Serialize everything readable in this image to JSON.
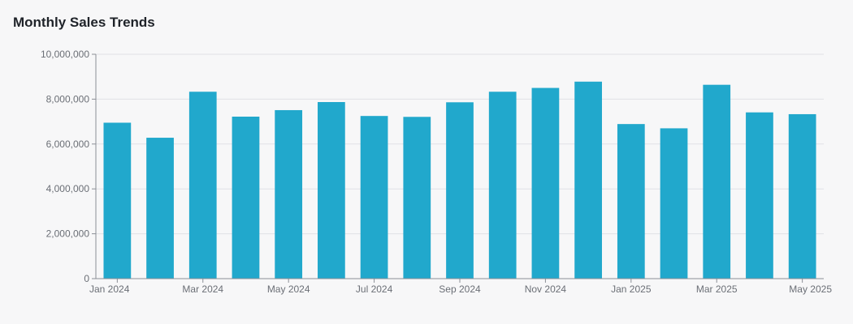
{
  "chart_data": {
    "type": "bar",
    "title": "Monthly Sales Trends",
    "xlabel": "",
    "ylabel": "",
    "ylim": [
      0,
      10000000
    ],
    "yticks": [
      0,
      2000000,
      4000000,
      6000000,
      8000000,
      10000000
    ],
    "ytick_labels": [
      "0",
      "2,000,000",
      "4,000,000",
      "6,000,000",
      "8,000,000",
      "10,000,000"
    ],
    "categories": [
      "Jan 2024",
      "Feb 2024",
      "Mar 2024",
      "Apr 2024",
      "May 2024",
      "Jun 2024",
      "Jul 2024",
      "Aug 2024",
      "Sep 2024",
      "Oct 2024",
      "Nov 2024",
      "Dec 2024",
      "Jan 2025",
      "Feb 2025",
      "Mar 2025",
      "Apr 2025",
      "May 2025"
    ],
    "shown_category_labels": [
      "Jan 2024",
      "Mar 2024",
      "May 2024",
      "Jul 2024",
      "Sep 2024",
      "Nov 2024",
      "Jan 2025",
      "Mar 2025",
      "May 2025"
    ],
    "values": [
      6950000,
      6280000,
      8330000,
      7220000,
      7510000,
      7870000,
      7250000,
      7210000,
      7860000,
      8330000,
      8500000,
      8780000,
      6890000,
      6700000,
      8640000,
      7410000,
      7330000
    ],
    "bar_color": "#21a8cc",
    "gridline_color": "#e0e1e6",
    "axis_color": "#8b8f96",
    "grid": true,
    "legend": "none"
  }
}
